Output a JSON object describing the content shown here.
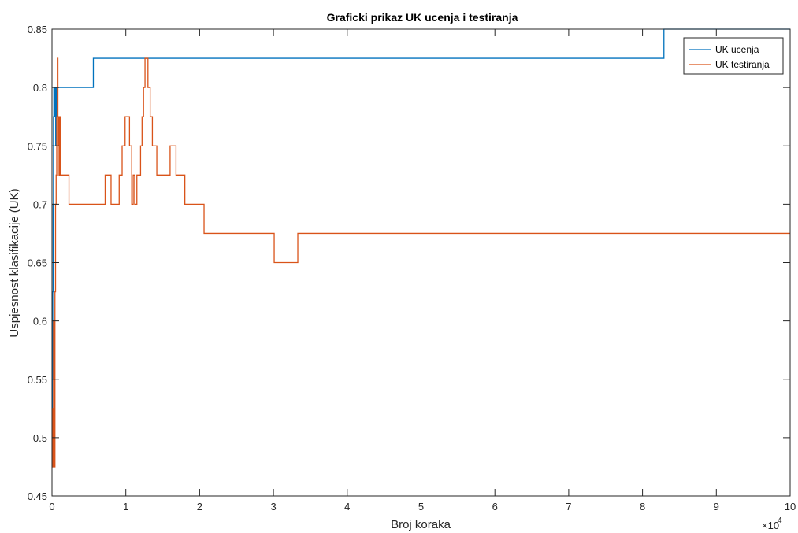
{
  "chart_data": {
    "type": "line",
    "title": "Graficki prikaz UK ucenja i testiranja",
    "xlabel": "Broj koraka",
    "ylabel": "Uspjesnost klasifikacije (UK)",
    "x_multiplier_label": "×10",
    "x_multiplier_exponent": "4",
    "xlim": [
      0,
      100000
    ],
    "ylim": [
      0.45,
      0.85
    ],
    "x_ticks": [
      0,
      10000,
      20000,
      30000,
      40000,
      50000,
      60000,
      70000,
      80000,
      90000,
      100000
    ],
    "x_tick_labels": [
      "0",
      "1",
      "2",
      "3",
      "4",
      "5",
      "6",
      "7",
      "8",
      "9",
      "10"
    ],
    "y_ticks": [
      0.45,
      0.5,
      0.55,
      0.6,
      0.65,
      0.7,
      0.75,
      0.8,
      0.85
    ],
    "y_tick_labels": [
      "0.45",
      "0.5",
      "0.55",
      "0.6",
      "0.65",
      "0.7",
      "0.75",
      "0.8",
      "0.85"
    ],
    "grid": false,
    "legend_position": "top-right",
    "series": [
      {
        "name": "UK ucenja",
        "color": "#0072BD",
        "step": true,
        "points": [
          [
            0,
            0.475
          ],
          [
            50,
            0.55
          ],
          [
            100,
            0.625
          ],
          [
            150,
            0.7
          ],
          [
            200,
            0.775
          ],
          [
            250,
            0.8
          ],
          [
            300,
            0.775
          ],
          [
            350,
            0.8
          ],
          [
            400,
            0.775
          ],
          [
            450,
            0.8
          ],
          [
            500,
            0.75
          ],
          [
            560,
            0.8
          ],
          [
            650,
            0.775
          ],
          [
            720,
            0.8
          ],
          [
            5600,
            0.825
          ],
          [
            82900,
            0.85
          ],
          [
            100000,
            0.85
          ]
        ]
      },
      {
        "name": "UK testiranja",
        "color": "#D95319",
        "step": true,
        "points": [
          [
            0,
            0.525
          ],
          [
            100,
            0.475
          ],
          [
            200,
            0.6
          ],
          [
            300,
            0.475
          ],
          [
            400,
            0.625
          ],
          [
            480,
            0.7
          ],
          [
            560,
            0.725
          ],
          [
            640,
            0.775
          ],
          [
            720,
            0.825
          ],
          [
            800,
            0.75
          ],
          [
            880,
            0.775
          ],
          [
            960,
            0.725
          ],
          [
            1050,
            0.775
          ],
          [
            1150,
            0.725
          ],
          [
            2300,
            0.7
          ],
          [
            7200,
            0.725
          ],
          [
            8000,
            0.7
          ],
          [
            9100,
            0.725
          ],
          [
            9500,
            0.75
          ],
          [
            9900,
            0.775
          ],
          [
            10500,
            0.75
          ],
          [
            10800,
            0.7
          ],
          [
            11000,
            0.725
          ],
          [
            11200,
            0.7
          ],
          [
            11500,
            0.725
          ],
          [
            12000,
            0.75
          ],
          [
            12200,
            0.775
          ],
          [
            12400,
            0.8
          ],
          [
            12600,
            0.825
          ],
          [
            13000,
            0.8
          ],
          [
            13300,
            0.775
          ],
          [
            13600,
            0.75
          ],
          [
            14200,
            0.725
          ],
          [
            16000,
            0.75
          ],
          [
            16800,
            0.725
          ],
          [
            18000,
            0.7
          ],
          [
            20600,
            0.675
          ],
          [
            30100,
            0.65
          ],
          [
            33300,
            0.675
          ],
          [
            100000,
            0.675
          ]
        ]
      }
    ]
  }
}
